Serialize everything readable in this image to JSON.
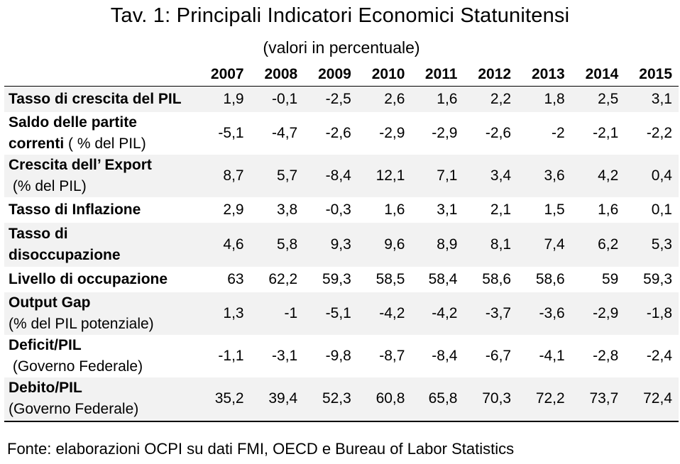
{
  "title": "Tav. 1: Principali Indicatori Economici Statunitensi",
  "subtitle": "(valori in percentuale)",
  "years": [
    "2007",
    "2008",
    "2009",
    "2010",
    "2011",
    "2012",
    "2013",
    "2014",
    "2015"
  ],
  "rows": [
    {
      "label": "Tasso di crescita del PIL",
      "sub": "",
      "values": [
        "1,9",
        "-0,1",
        "-2,5",
        "2,6",
        "1,6",
        "2,2",
        "1,8",
        "2,5",
        "3,1"
      ]
    },
    {
      "label": "Saldo delle partite",
      "sub": "correnti ( % del PIL)",
      "sub_inline": "correnti",
      "sub_rest": " ( % del PIL)",
      "values": [
        "-5,1",
        "-4,7",
        "-2,6",
        "-2,9",
        "-2,9",
        "-2,6",
        "-2",
        "-2,1",
        "-2,2"
      ]
    },
    {
      "label": "Crescita dell’ Export",
      "sub": " (% del PIL)",
      "values": [
        "8,7",
        "5,7",
        "-8,4",
        "12,1",
        "7,1",
        "3,4",
        "3,6",
        "4,2",
        "0,4"
      ]
    },
    {
      "label": "Tasso di Inflazione",
      "sub": "",
      "values": [
        "2,9",
        "3,8",
        "-0,3",
        "1,6",
        "3,1",
        "2,1",
        "1,5",
        "1,6",
        "0,1"
      ]
    },
    {
      "label": "Tasso di",
      "sub": "disoccupazione",
      "values": [
        "4,6",
        "5,8",
        "9,3",
        "9,6",
        "8,9",
        "8,1",
        "7,4",
        "6,2",
        "5,3"
      ]
    },
    {
      "label": "Livello di occupazione",
      "sub": "",
      "values": [
        "63",
        "62,2",
        "59,3",
        "58,5",
        "58,4",
        "58,6",
        "58,6",
        "59",
        "59,3"
      ]
    },
    {
      "label": "Output Gap",
      "sub": "(% del PIL potenziale)",
      "values": [
        "1,3",
        "-1",
        "-5,1",
        "-4,2",
        "-4,2",
        "-3,7",
        "-3,6",
        "-2,9",
        "-1,8"
      ]
    },
    {
      "label": "Deficit/PIL",
      "sub": " (Governo Federale)",
      "values": [
        "-1,1",
        "-3,1",
        "-9,8",
        "-8,7",
        "-8,4",
        "-6,7",
        "-4,1",
        "-2,8",
        "-2,4"
      ]
    },
    {
      "label": "Debito/PIL",
      "sub": "(Governo Federale)",
      "values": [
        "35,2",
        "39,4",
        "52,3",
        "60,8",
        "65,8",
        "70,3",
        "72,2",
        "73,7",
        "72,4"
      ]
    }
  ],
  "source": "Fonte: elaborazioni OCPI su dati FMI, OECD e Bureau of Labor Statistics"
}
